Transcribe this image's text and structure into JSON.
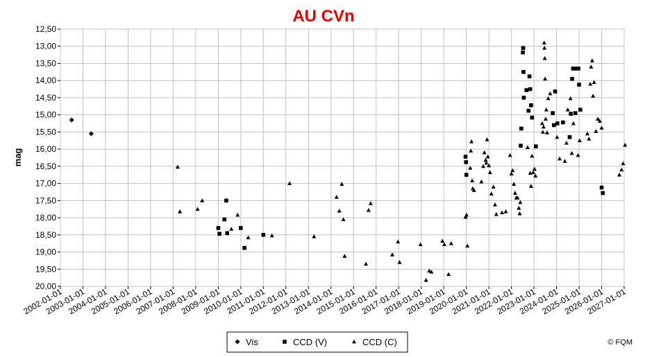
{
  "chart_data": {
    "type": "scatter",
    "title": "AU CVn",
    "xlabel": "",
    "ylabel": "mag",
    "grid": true,
    "legend_position": "bottom",
    "credit": "© FQM",
    "y_inverted": true,
    "ylim": [
      12.5,
      20.0
    ],
    "yticks": [
      "12,50",
      "13,00",
      "13,50",
      "14,00",
      "14,50",
      "15,00",
      "15,50",
      "16,00",
      "16,50",
      "17,00",
      "17,50",
      "18,00",
      "18,50",
      "19,00",
      "19,50",
      "20,00"
    ],
    "xlim": [
      "2002-01-01",
      "2027-01-01"
    ],
    "xticks": [
      "2002-01-01",
      "2003-01-01",
      "2004-01-01",
      "2005-01-01",
      "2006-01-01",
      "2007-01-01",
      "2008-01-01",
      "2009-01-01",
      "2010-01-01",
      "2011-01-01",
      "2012-01-01",
      "2013-01-01",
      "2014-01-01",
      "2015-01-01",
      "2016-01-01",
      "2017-01-01",
      "2018-01-01",
      "2019-01-01",
      "2020-01-01",
      "2021-01-01",
      "2022-01-01",
      "2023-01-01",
      "2024-01-01",
      "2025-01-01",
      "2026-01-01",
      "2027-01-01"
    ],
    "series": [
      {
        "name": "Vis",
        "marker": "diamond",
        "points": [
          [
            "2002-07-01",
            15.15
          ],
          [
            "2003-05-15",
            15.55
          ]
        ]
      },
      {
        "name": "CCD (V)",
        "marker": "square",
        "points": [
          [
            "2009-01-01",
            18.3
          ],
          [
            "2009-01-20",
            18.47
          ],
          [
            "2009-04-10",
            18.05
          ],
          [
            "2009-05-10",
            17.5
          ],
          [
            "2009-05-25",
            18.45
          ],
          [
            "2010-01-01",
            18.3
          ],
          [
            "2010-03-01",
            18.88
          ],
          [
            "2011-01-01",
            18.5
          ],
          [
            "2019-12-20",
            16.22
          ],
          [
            "2019-12-28",
            16.38
          ],
          [
            "2020-01-02",
            16.75
          ],
          [
            "2022-06-01",
            15.9
          ],
          [
            "2022-06-10",
            15.4
          ],
          [
            "2022-07-05",
            13.18
          ],
          [
            "2022-07-10",
            13.05
          ],
          [
            "2022-07-15",
            13.75
          ],
          [
            "2022-07-20",
            14.5
          ],
          [
            "2022-09-01",
            14.28
          ],
          [
            "2022-10-05",
            14.88
          ],
          [
            "2022-10-20",
            13.88
          ],
          [
            "2022-11-01",
            14.25
          ],
          [
            "2022-11-15",
            14.72
          ],
          [
            "2022-12-01",
            15.08
          ],
          [
            "2023-02-01",
            15.92
          ],
          [
            "2023-11-01",
            14.95
          ],
          [
            "2023-11-20",
            15.3
          ],
          [
            "2023-12-10",
            14.32
          ],
          [
            "2024-01-15",
            15.25
          ],
          [
            "2024-04-15",
            15.22
          ],
          [
            "2024-08-01",
            15.65
          ],
          [
            "2024-08-20",
            14.97
          ],
          [
            "2024-09-10",
            13.95
          ],
          [
            "2024-09-25",
            13.65
          ],
          [
            "2024-10-20",
            13.65
          ],
          [
            "2024-11-01",
            14.95
          ],
          [
            "2024-12-20",
            13.65
          ],
          [
            "2025-01-01",
            14.12
          ],
          [
            "2025-01-20",
            14.85
          ],
          [
            "2026-01-01",
            17.12
          ],
          [
            "2026-01-20",
            17.28
          ]
        ]
      },
      {
        "name": "CCD (C)",
        "marker": "triangle",
        "points": [
          [
            "2007-03-15",
            16.52
          ],
          [
            "2007-04-20",
            17.82
          ],
          [
            "2008-02-01",
            17.75
          ],
          [
            "2008-04-15",
            17.5
          ],
          [
            "2009-08-01",
            18.33
          ],
          [
            "2009-11-10",
            17.92
          ],
          [
            "2010-05-01",
            18.58
          ],
          [
            "2011-05-20",
            18.52
          ],
          [
            "2012-03-01",
            17.0
          ],
          [
            "2013-04-01",
            18.55
          ],
          [
            "2014-04-01",
            17.4
          ],
          [
            "2014-05-15",
            17.8
          ],
          [
            "2014-06-25",
            17.02
          ],
          [
            "2014-07-20",
            18.05
          ],
          [
            "2014-08-10",
            19.12
          ],
          [
            "2015-07-20",
            19.35
          ],
          [
            "2015-09-01",
            17.78
          ],
          [
            "2015-10-05",
            17.58
          ],
          [
            "2016-09-20",
            19.08
          ],
          [
            "2016-12-20",
            18.7
          ],
          [
            "2017-01-15",
            19.3
          ],
          [
            "2017-12-20",
            18.78
          ],
          [
            "2018-03-20",
            19.82
          ],
          [
            "2018-05-10",
            19.55
          ],
          [
            "2018-06-15",
            19.58
          ],
          [
            "2018-12-10",
            18.68
          ],
          [
            "2019-01-10",
            18.78
          ],
          [
            "2019-03-20",
            19.65
          ],
          [
            "2019-05-01",
            18.75
          ],
          [
            "2019-12-20",
            17.98
          ],
          [
            "2020-01-05",
            17.92
          ],
          [
            "2020-01-20",
            18.82
          ],
          [
            "2020-03-05",
            16.55
          ],
          [
            "2020-03-15",
            16.05
          ],
          [
            "2020-03-25",
            15.78
          ],
          [
            "2020-04-05",
            16.92
          ],
          [
            "2020-04-15",
            17.15
          ],
          [
            "2020-05-05",
            17.2
          ],
          [
            "2020-09-01",
            16.95
          ],
          [
            "2020-10-01",
            16.5
          ],
          [
            "2020-10-20",
            16.1
          ],
          [
            "2020-11-10",
            16.32
          ],
          [
            "2020-11-20",
            16.4
          ],
          [
            "2020-12-01",
            15.72
          ],
          [
            "2020-12-15",
            16.22
          ],
          [
            "2021-01-01",
            16.48
          ],
          [
            "2021-01-20",
            16.68
          ],
          [
            "2021-02-10",
            17.3
          ],
          [
            "2021-03-15",
            17.1
          ],
          [
            "2021-04-10",
            17.62
          ],
          [
            "2021-05-01",
            17.9
          ],
          [
            "2021-08-01",
            17.85
          ],
          [
            "2021-10-01",
            17.82
          ],
          [
            "2021-12-10",
            16.18
          ],
          [
            "2022-01-01",
            16.72
          ],
          [
            "2022-01-20",
            16.62
          ],
          [
            "2022-02-10",
            17.02
          ],
          [
            "2022-03-01",
            17.28
          ],
          [
            "2022-03-20",
            17.42
          ],
          [
            "2022-04-10",
            17.42
          ],
          [
            "2022-05-01",
            17.72
          ],
          [
            "2022-05-15",
            17.88
          ],
          [
            "2022-05-25",
            17.55
          ],
          [
            "2022-09-20",
            15.95
          ],
          [
            "2022-11-01",
            16.7
          ],
          [
            "2022-11-15",
            17.08
          ],
          [
            "2022-12-01",
            16.2
          ],
          [
            "2022-12-20",
            16.68
          ],
          [
            "2023-01-10",
            16.58
          ],
          [
            "2023-01-25",
            16.78
          ],
          [
            "2023-05-15",
            15.25
          ],
          [
            "2023-05-25",
            15.5
          ],
          [
            "2023-06-05",
            15.35
          ],
          [
            "2023-06-15",
            12.9
          ],
          [
            "2023-06-20",
            13.05
          ],
          [
            "2023-06-25",
            13.35
          ],
          [
            "2023-07-01",
            13.95
          ],
          [
            "2023-07-10",
            15.12
          ],
          [
            "2023-07-20",
            14.85
          ],
          [
            "2023-08-01",
            15.52
          ],
          [
            "2023-08-20",
            14.52
          ],
          [
            "2023-09-20",
            14.38
          ],
          [
            "2024-01-10",
            15.65
          ],
          [
            "2024-02-20",
            16.28
          ],
          [
            "2024-05-15",
            16.35
          ],
          [
            "2024-06-10",
            15.82
          ],
          [
            "2024-07-01",
            14.85
          ],
          [
            "2024-08-15",
            14.52
          ],
          [
            "2024-09-05",
            16.12
          ],
          [
            "2024-10-01",
            15.25
          ],
          [
            "2024-12-15",
            16.18
          ],
          [
            "2025-01-10",
            15.75
          ],
          [
            "2025-05-15",
            15.55
          ],
          [
            "2025-06-10",
            15.7
          ],
          [
            "2025-07-01",
            14.1
          ],
          [
            "2025-07-15",
            13.6
          ],
          [
            "2025-08-01",
            13.42
          ],
          [
            "2025-08-15",
            14.45
          ],
          [
            "2025-09-01",
            14.05
          ],
          [
            "2025-10-01",
            15.48
          ],
          [
            "2025-11-01",
            15.12
          ],
          [
            "2025-12-01",
            15.18
          ],
          [
            "2026-01-01",
            15.38
          ],
          [
            "2026-10-15",
            16.75
          ],
          [
            "2026-11-20",
            16.6
          ],
          [
            "2026-12-15",
            16.42
          ],
          [
            "2027-01-15",
            15.88
          ]
        ]
      }
    ]
  }
}
